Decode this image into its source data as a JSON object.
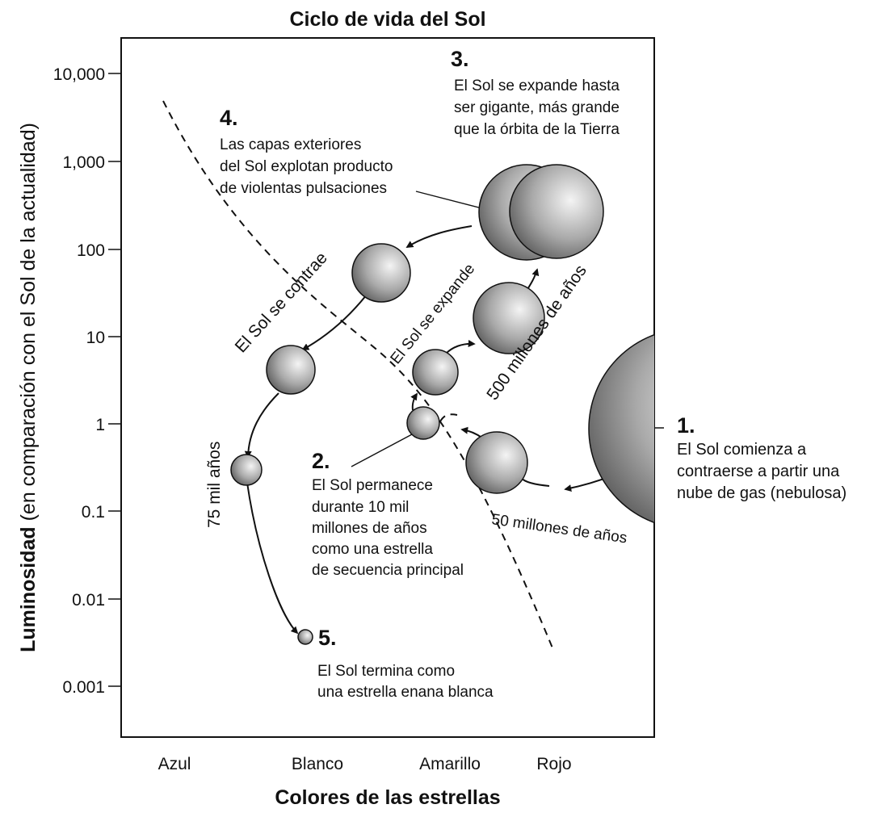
{
  "title": "Ciclo de vida del Sol",
  "y_axis": {
    "label_bold": "Luminosidad",
    "label_rest": " (en comparación con el Sol de la actualidad)",
    "ticks": [
      "10,000",
      "1,000",
      "100",
      "10",
      "1",
      "0.1",
      "0.01",
      "0.001"
    ]
  },
  "x_axis": {
    "label": "Colores de las estrellas",
    "ticks": [
      "Azul",
      "Blanco",
      "Amarillo",
      "Rojo"
    ]
  },
  "stages": {
    "s1": {
      "num": "1.",
      "lines": [
        "El Sol comienza a",
        "contraerse a partir una",
        "nube de gas (nebulosa)"
      ]
    },
    "s2": {
      "num": "2.",
      "lines": [
        "El Sol permanece",
        "durante 10 mil",
        "millones de años",
        "como una estrella",
        "de secuencia principal"
      ]
    },
    "s3": {
      "num": "3.",
      "lines": [
        "El Sol se expande hasta",
        "ser gigante, más grande",
        "que la órbita de la Tierra"
      ]
    },
    "s4": {
      "num": "4.",
      "lines": [
        "Las capas exteriores",
        "del Sol explotan producto",
        "de violentas pulsaciones"
      ]
    },
    "s5": {
      "num": "5.",
      "lines": [
        "El Sol termina como",
        "una estrella enana blanca"
      ]
    }
  },
  "path_labels": {
    "contracts": "El Sol se contrae",
    "expands": "El Sol se expande",
    "t500": "500 millones de años",
    "t50": "50 millones de años",
    "t75": "75 mil años"
  },
  "colors": {
    "line": "#111111",
    "sphere_light": "#f4f4f4",
    "sphere_dark": "#555555"
  }
}
